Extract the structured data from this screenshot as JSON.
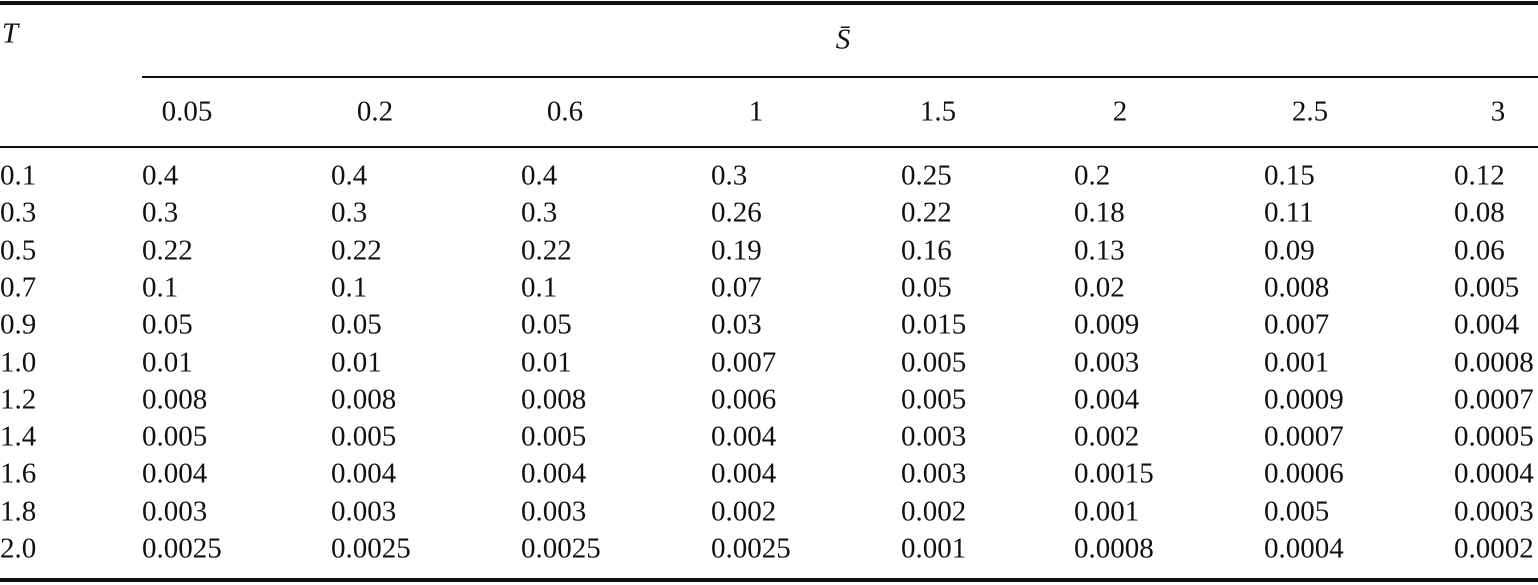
{
  "table": {
    "row_header": "T",
    "group_header": "S̄",
    "columns": [
      "0.05",
      "0.2",
      "0.6",
      "1",
      "1.5",
      "2",
      "2.5",
      "3"
    ],
    "rows": [
      [
        "0.1",
        "0.4",
        "0.4",
        "0.4",
        "0.3",
        "0.25",
        "0.2",
        "0.15",
        "0.12"
      ],
      [
        "0.3",
        "0.3",
        "0.3",
        "0.3",
        "0.26",
        "0.22",
        "0.18",
        "0.11",
        "0.08"
      ],
      [
        "0.5",
        "0.22",
        "0.22",
        "0.22",
        "0.19",
        "0.16",
        "0.13",
        "0.09",
        "0.06"
      ],
      [
        "0.7",
        "0.1",
        "0.1",
        "0.1",
        "0.07",
        "0.05",
        "0.02",
        "0.008",
        "0.005"
      ],
      [
        "0.9",
        "0.05",
        "0.05",
        "0.05",
        "0.03",
        "0.015",
        "0.009",
        "0.007",
        "0.004"
      ],
      [
        "1.0",
        "0.01",
        "0.01",
        "0.01",
        "0.007",
        "0.005",
        "0.003",
        "0.001",
        "0.0008"
      ],
      [
        "1.2",
        "0.008",
        "0.008",
        "0.008",
        "0.006",
        "0.005",
        "0.004",
        "0.0009",
        "0.0007"
      ],
      [
        "1.4",
        "0.005",
        "0.005",
        "0.005",
        "0.004",
        "0.003",
        "0.002",
        "0.0007",
        "0.0005"
      ],
      [
        "1.6",
        "0.004",
        "0.004",
        "0.004",
        "0.004",
        "0.003",
        "0.0015",
        "0.0006",
        "0.0004"
      ],
      [
        "1.8",
        "0.003",
        "0.003",
        "0.003",
        "0.002",
        "0.002",
        "0.001",
        "0.005",
        "0.0003"
      ],
      [
        "2.0",
        "0.0025",
        "0.0025",
        "0.0025",
        "0.0025",
        "0.001",
        "0.0008",
        "0.0004",
        "0.0002"
      ]
    ]
  }
}
